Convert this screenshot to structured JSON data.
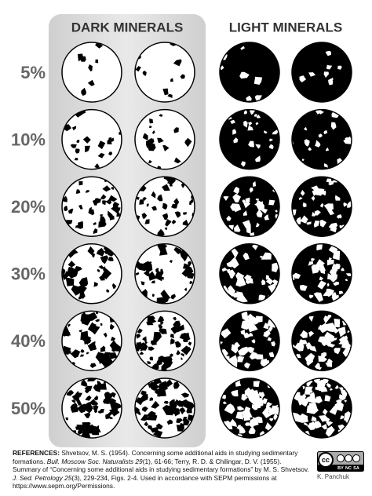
{
  "headers": {
    "dark": "DARK MINERALS",
    "light": "LIGHT MINERALS"
  },
  "rows": [
    "5%",
    "10%",
    "20%",
    "30%",
    "40%",
    "50%"
  ],
  "references": {
    "label": "REFERENCES:",
    "segments": [
      "Shvetsov, M. S. (1954). Concerning some additional aids in studying sedimentary formations. ",
      "Bull. Moscow Soc. Naturalists 29",
      "(1), 61-66; Terry, R. D. & Chilingar, D. V. (1955). Summary of “Concerning some additional aids in studying sedimentary formations” by M. S. Shvetsov. ",
      "J. Sed. Petrology 25",
      "(3), 229-234, Figs. 2-4. Used in accordance with SEPM permissions at https://www.sepm.org/Permissions."
    ]
  },
  "license": {
    "logo": "cc",
    "terms": [
      "BY",
      "NC",
      "SA"
    ],
    "credit": "K. Panchuk"
  }
}
